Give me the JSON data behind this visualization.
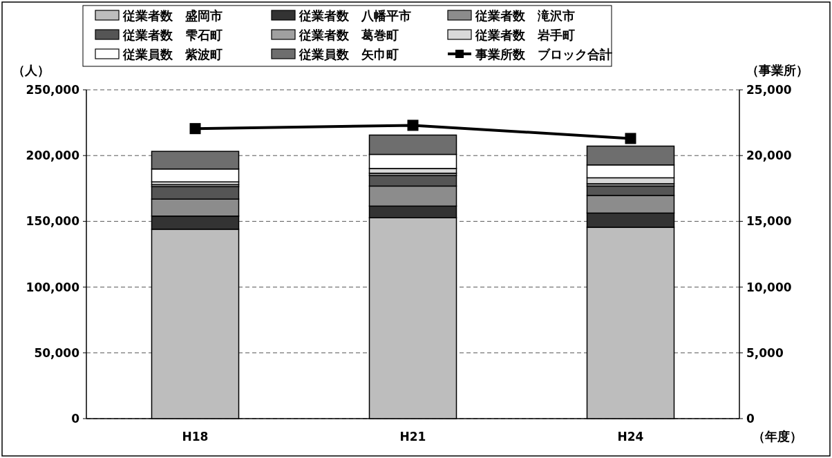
{
  "chart_data": {
    "type": "bar",
    "stacked": true,
    "categories": [
      "H18",
      "H21",
      "H24"
    ],
    "ylabel": "（人）",
    "y2label": "（事業所）",
    "xlabel": "（年度）",
    "ylim": [
      0,
      250000
    ],
    "yticks": [
      {
        "value": 0,
        "label": "0"
      },
      {
        "value": 50000,
        "label": "50,000"
      },
      {
        "value": 100000,
        "label": "100,000"
      },
      {
        "value": 150000,
        "label": "150,000"
      },
      {
        "value": 200000,
        "label": "200,000"
      },
      {
        "value": 250000,
        "label": "250,000"
      }
    ],
    "y2lim": [
      0,
      25000
    ],
    "y2ticks": [
      {
        "value": 0,
        "label": "0"
      },
      {
        "value": 5000,
        "label": "5,000"
      },
      {
        "value": 10000,
        "label": "10,000"
      },
      {
        "value": 15000,
        "label": "15,000"
      },
      {
        "value": 20000,
        "label": "20,000"
      },
      {
        "value": 25000,
        "label": "25,000"
      }
    ],
    "grid": "y",
    "legend": "top",
    "series": [
      {
        "name": "従業者数　盛岡市",
        "color": "#bdbdbd",
        "values": [
          144000,
          152700,
          145500
        ]
      },
      {
        "name": "従業者数　八幡平市",
        "color": "#333333",
        "values": [
          10000,
          8900,
          10800
        ]
      },
      {
        "name": "従業者数　滝沢市",
        "color": "#8c8c8c",
        "values": [
          12900,
          15200,
          13400
        ]
      },
      {
        "name": "従業者数　雫石町",
        "color": "#555555",
        "values": [
          9500,
          8000,
          7100
        ]
      },
      {
        "name": "従業者数　葛巻町",
        "color": "#a0a0a0",
        "values": [
          1500,
          1800,
          1800
        ]
      },
      {
        "name": "従業者数　岩手町",
        "color": "#d9d9d9",
        "values": [
          2100,
          3600,
          4500
        ]
      },
      {
        "name": "従業員数　紫波町",
        "color": "#ffffff",
        "values": [
          9800,
          10700,
          9800
        ]
      },
      {
        "name": "従業員数　矢巾町",
        "color": "#6e6e6e",
        "values": [
          13400,
          14700,
          14300
        ]
      },
      {
        "name": "事業所数　ブロック合計",
        "type": "line",
        "axis": "y2",
        "color": "#000000",
        "marker": "square",
        "line_style": "solid",
        "values": [
          22050,
          22300,
          21300
        ]
      }
    ]
  }
}
